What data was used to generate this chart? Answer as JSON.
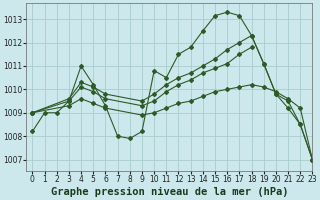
{
  "title": "Graphe pression niveau de la mer (hPa)",
  "bg_color": "#cce8ec",
  "grid_color": "#aacccc",
  "line_color": "#2d5a27",
  "xlim": [
    -0.5,
    23
  ],
  "ylim": [
    1006.5,
    1013.7
  ],
  "yticks": [
    1007,
    1008,
    1009,
    1010,
    1011,
    1012,
    1013
  ],
  "xticks": [
    0,
    1,
    2,
    3,
    4,
    5,
    6,
    7,
    8,
    9,
    10,
    11,
    12,
    13,
    14,
    15,
    16,
    17,
    18,
    19,
    20,
    21,
    22,
    23
  ],
  "series": [
    {
      "x": [
        0,
        1,
        2,
        3,
        4,
        5,
        6,
        7,
        8,
        9,
        10,
        11,
        12,
        13,
        14,
        15,
        16,
        17,
        18,
        19,
        20,
        21,
        22,
        23
      ],
      "y": [
        1008.2,
        1009.0,
        1009.0,
        1009.5,
        1011.0,
        1010.2,
        1009.3,
        1008.0,
        1007.9,
        1008.2,
        1010.8,
        1010.5,
        1011.5,
        1011.8,
        1012.5,
        1013.15,
        1013.3,
        1013.15,
        1012.3,
        1011.1,
        1009.8,
        1009.5,
        1008.5,
        1007.0
      ]
    },
    {
      "x": [
        0,
        3,
        4,
        5,
        6,
        9,
        10,
        11,
        12,
        13,
        14,
        15,
        16,
        17,
        18,
        19,
        20,
        21,
        22,
        23
      ],
      "y": [
        1009.0,
        1009.6,
        1010.3,
        1010.1,
        1009.8,
        1009.5,
        1009.8,
        1010.2,
        1010.5,
        1010.7,
        1011.0,
        1011.3,
        1011.7,
        1012.0,
        1012.3,
        1011.1,
        1009.8,
        1009.2,
        1008.5,
        1007.0
      ]
    },
    {
      "x": [
        0,
        3,
        4,
        5,
        6,
        9,
        10,
        11,
        12,
        13,
        14,
        15,
        16,
        17,
        18
      ],
      "y": [
        1009.0,
        1009.5,
        1010.1,
        1009.9,
        1009.6,
        1009.3,
        1009.5,
        1009.9,
        1010.2,
        1010.4,
        1010.7,
        1010.9,
        1011.1,
        1011.5,
        1011.8
      ]
    },
    {
      "x": [
        0,
        3,
        4,
        5,
        6,
        9,
        10,
        11,
        12,
        13,
        14,
        15,
        16,
        17,
        18,
        19,
        20,
        21,
        22,
        23
      ],
      "y": [
        1009.0,
        1009.3,
        1009.6,
        1009.4,
        1009.2,
        1008.9,
        1009.0,
        1009.2,
        1009.4,
        1009.5,
        1009.7,
        1009.9,
        1010.0,
        1010.1,
        1010.2,
        1010.1,
        1009.9,
        1009.6,
        1009.2,
        1007.0
      ]
    }
  ],
  "title_fontsize": 7.5,
  "tick_fontsize": 5.5
}
